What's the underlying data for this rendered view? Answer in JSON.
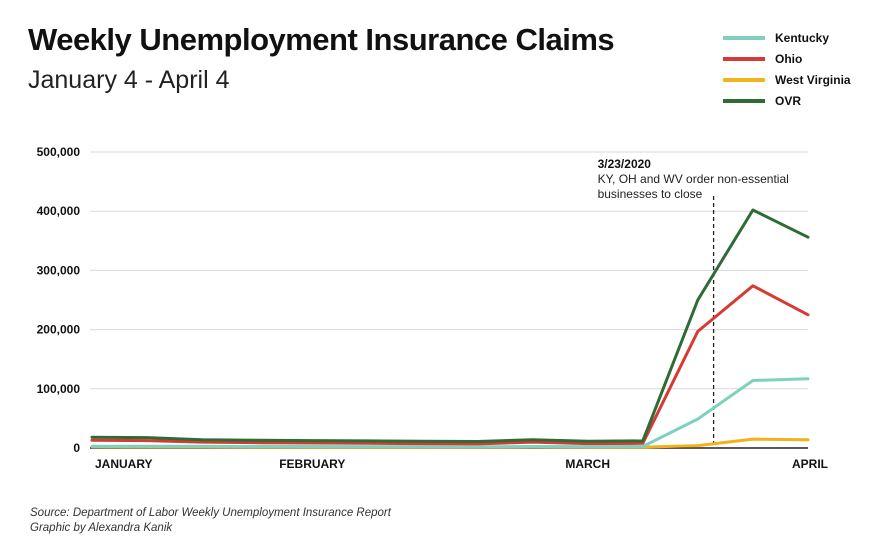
{
  "chart_data": {
    "type": "line",
    "title": "Weekly Unemployment Insurance Claims",
    "subtitle": "January 4 - April 4",
    "x": [
      "2020-01-04",
      "2020-01-11",
      "2020-01-18",
      "2020-01-25",
      "2020-02-01",
      "2020-02-08",
      "2020-02-15",
      "2020-02-22",
      "2020-02-29",
      "2020-03-07",
      "2020-03-14",
      "2020-03-21",
      "2020-03-28",
      "2020-04-04"
    ],
    "x_tick_labels": [
      "JANUARY",
      "FEBRUARY",
      "MARCH",
      "APRIL"
    ],
    "x_tick_dates": [
      "2020-01-04",
      "2020-02-01",
      "2020-03-07",
      "2020-04-04"
    ],
    "y_ticks": [
      0,
      100000,
      200000,
      300000,
      400000,
      500000
    ],
    "y_tick_labels": [
      "0",
      "100,000",
      "200,000",
      "300,000",
      "400,000",
      "500,000"
    ],
    "ylim": [
      0,
      500000
    ],
    "grid": "horizontal",
    "legend_position": "top-right",
    "series": [
      {
        "name": "Kentucky",
        "color": "#7fd1bf",
        "values": [
          3000,
          3000,
          2800,
          2500,
          2500,
          2400,
          2300,
          2200,
          2600,
          2300,
          2500,
          49000,
          114000,
          117000
        ]
      },
      {
        "name": "Ohio",
        "color": "#d63a34",
        "values": [
          13000,
          12500,
          10000,
          9000,
          8500,
          8000,
          7500,
          7000,
          10000,
          7500,
          8000,
          197000,
          274000,
          225000
        ]
      },
      {
        "name": "West Virginia",
        "color": "#f2b21c",
        "values": [
          2000,
          1900,
          1800,
          1700,
          1600,
          1600,
          1500,
          1500,
          1800,
          1500,
          1600,
          4000,
          15000,
          14000
        ]
      },
      {
        "name": "OVR",
        "color": "#2e6b35",
        "values": [
          18000,
          17500,
          14000,
          13000,
          12500,
          12000,
          11500,
          11000,
          14000,
          11500,
          12000,
          250000,
          402000,
          356000
        ]
      }
    ],
    "annotation": {
      "date": "2020-03-23",
      "label_date": "3/23/2020",
      "label_lines": [
        "KY, OH and WV order non-essential",
        "businesses to close"
      ]
    }
  },
  "source": {
    "line1": "Source: Department of Labor Weekly Unemployment Insurance Report",
    "line2": "Graphic by Alexandra Kanik"
  }
}
